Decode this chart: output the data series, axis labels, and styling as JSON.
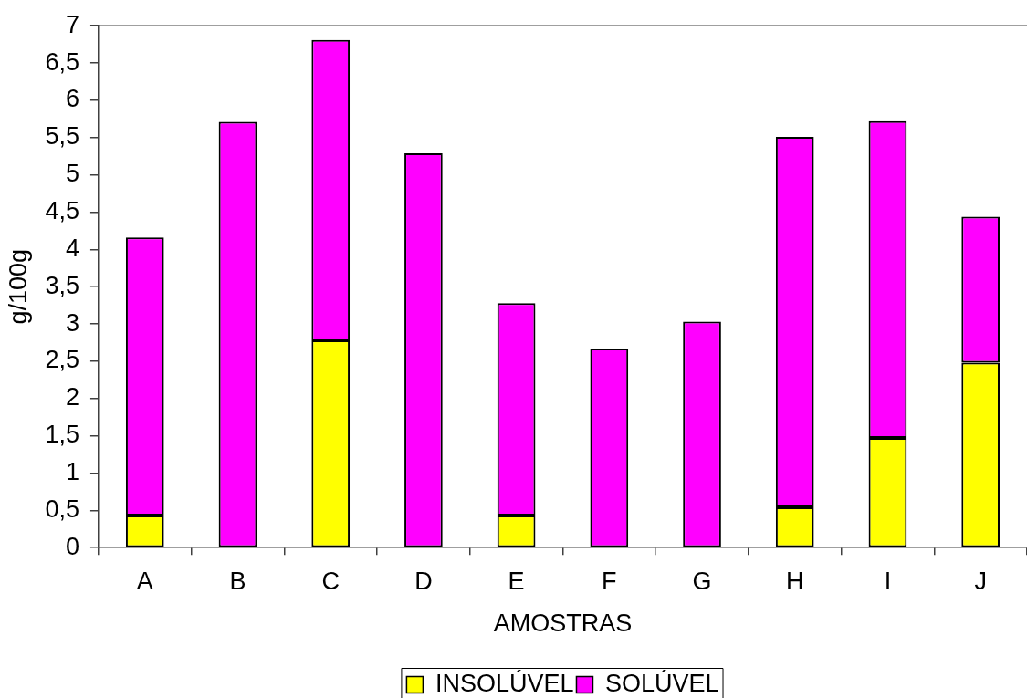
{
  "chart_data": {
    "type": "bar",
    "xlabel": "AMOSTRAS",
    "ylabel": "g/100g",
    "categories": [
      "A",
      "B",
      "C",
      "D",
      "E",
      "F",
      "G",
      "H",
      "I",
      "J"
    ],
    "series": [
      {
        "name": "INSOLÚVEL",
        "color": "#ffff00",
        "values": [
          0.43,
          0,
          2.78,
          0,
          0.43,
          0,
          0,
          0.54,
          1.47,
          2.48
        ]
      },
      {
        "name": "SOLÚVEL",
        "color": "#ff00ff",
        "values": [
          3.73,
          5.71,
          4.03,
          5.29,
          2.85,
          2.67,
          3.03,
          4.97,
          4.25,
          1.96
        ]
      }
    ],
    "stacked": true,
    "ylim": [
      0,
      7
    ],
    "yticks": [
      0,
      {
        "value": 0.5,
        "label": "0,5"
      },
      1,
      {
        "value": 1.5,
        "label": "1,5"
      },
      2,
      {
        "value": 2.5,
        "label": "2,5"
      },
      3,
      {
        "value": 3.5,
        "label": "3,5"
      },
      4,
      {
        "value": 4.5,
        "label": "4,5"
      },
      5,
      {
        "value": 5.5,
        "label": "5,5"
      },
      6,
      {
        "value": 6.5,
        "label": "6,5"
      },
      7
    ],
    "grid": false,
    "legend": "bottom"
  }
}
